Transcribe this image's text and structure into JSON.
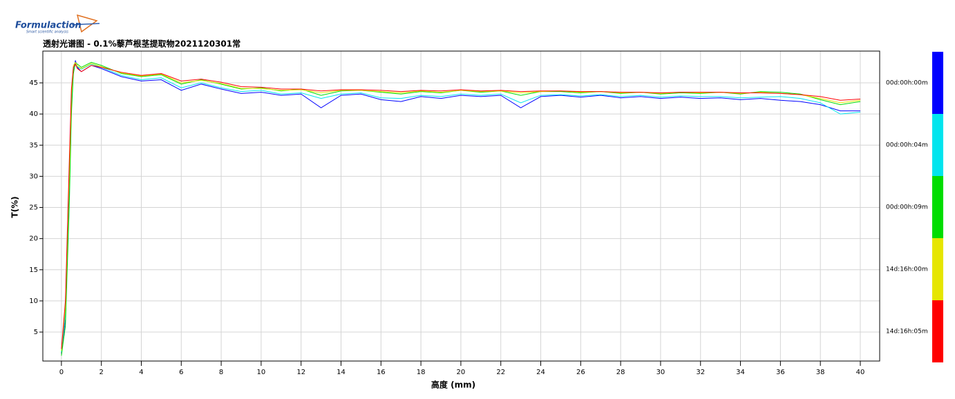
{
  "logo": {
    "name": "Formulaction",
    "tagline": "Smart scientific analysis"
  },
  "chart_data": {
    "type": "line",
    "title": "透射光谱图 - 0.1%藜芦根茎提取物2021120301常",
    "x_label": "高度 (mm)",
    "y_label": "T(%)",
    "x": [
      0,
      0.2,
      0.4,
      0.5,
      0.6,
      0.7,
      0.8,
      1,
      1.5,
      2,
      3,
      4,
      5,
      6,
      7,
      8,
      9,
      10,
      11,
      12,
      13,
      14,
      15,
      16,
      17,
      18,
      19,
      20,
      21,
      22,
      23,
      24,
      25,
      26,
      27,
      28,
      29,
      30,
      31,
      32,
      33,
      34,
      35,
      36,
      37,
      38,
      39,
      40
    ],
    "series": [
      {
        "name": "00d:00h:00m",
        "color": "#0000ff",
        "values": [
          1.5,
          7,
          28,
          41,
          47,
          48.6,
          47.5,
          46.8,
          47.8,
          47.3,
          46,
          45.3,
          45.5,
          43.8,
          44.8,
          44,
          43.3,
          43.5,
          43,
          43.2,
          41,
          43,
          43.2,
          42.3,
          42,
          42.8,
          42.5,
          43,
          42.8,
          43,
          41,
          42.8,
          43,
          42.7,
          43,
          42.6,
          42.8,
          42.5,
          42.7,
          42.5,
          42.6,
          42.3,
          42.5,
          42.2,
          42,
          41.5,
          40.5,
          40.5
        ]
      },
      {
        "name": "00d:00h:04m",
        "color": "#00e5ee",
        "values": [
          1.8,
          8,
          30,
          42,
          47.2,
          48,
          47.6,
          47.2,
          48,
          47.5,
          46.2,
          45.5,
          45.8,
          44.2,
          45,
          44.2,
          43.6,
          43.8,
          43.2,
          43.4,
          42.5,
          43.2,
          43.4,
          42.6,
          42.5,
          43,
          42.8,
          43.2,
          43,
          43.2,
          41.8,
          43,
          43.1,
          42.9,
          43.1,
          42.8,
          43,
          42.7,
          42.9,
          42.8,
          42.8,
          42.6,
          42.7,
          42.8,
          42.5,
          41.8,
          40,
          40.3
        ]
      },
      {
        "name": "00d:00h:09m",
        "color": "#00dd00",
        "values": [
          1.2,
          6,
          26,
          40,
          46.5,
          48.2,
          48,
          47.5,
          48.3,
          47.8,
          46.5,
          46,
          46.3,
          44.8,
          45.5,
          44.8,
          44,
          44.2,
          43.7,
          44,
          43,
          43.7,
          43.8,
          43.5,
          43.2,
          43.6,
          43.4,
          43.8,
          43.5,
          43.7,
          43,
          43.6,
          43.6,
          43.4,
          43.6,
          43.3,
          43.5,
          43.2,
          43.4,
          43.3,
          43.5,
          43.2,
          43.6,
          43.5,
          43.2,
          42.3,
          41.5,
          42
        ]
      },
      {
        "name": "14d:16h:00m",
        "color": "#e6e600",
        "values": [
          2,
          9,
          31,
          43,
          47.8,
          48.3,
          47.7,
          47.3,
          48.1,
          47.6,
          46.6,
          46.1,
          46.4,
          45,
          45.4,
          44.9,
          44.1,
          44.1,
          43.8,
          43.9,
          43.4,
          43.8,
          43.8,
          43.6,
          43.4,
          43.7,
          43.5,
          43.8,
          43.6,
          43.7,
          43.4,
          43.6,
          43.7,
          43.5,
          43.6,
          43.4,
          43.5,
          43.3,
          43.5,
          43.4,
          43.5,
          43.3,
          43.5,
          43.3,
          43.1,
          42.5,
          41.8,
          42.2
        ]
      },
      {
        "name": "14d:16h:05m",
        "color": "#ff0000",
        "values": [
          2.3,
          10,
          33,
          44,
          47.5,
          48,
          47.3,
          46.8,
          47.8,
          47.5,
          46.7,
          46.2,
          46.5,
          45.3,
          45.6,
          45.1,
          44.4,
          44.3,
          44,
          44,
          43.7,
          43.9,
          43.9,
          43.8,
          43.6,
          43.8,
          43.7,
          43.9,
          43.7,
          43.8,
          43.6,
          43.7,
          43.7,
          43.6,
          43.6,
          43.5,
          43.5,
          43.4,
          43.5,
          43.5,
          43.5,
          43.4,
          43.4,
          43.3,
          43.1,
          42.8,
          42.2,
          42.4
        ]
      }
    ],
    "xlim": [
      -0.93,
      40.97
    ],
    "ylim": [
      0.35,
      50.1
    ],
    "xticks": [
      0,
      2,
      4,
      6,
      8,
      10,
      12,
      14,
      16,
      18,
      20,
      22,
      24,
      26,
      28,
      30,
      32,
      34,
      36,
      38,
      40
    ],
    "yticks": [
      5,
      10,
      15,
      20,
      25,
      30,
      35,
      40,
      45
    ],
    "grid": true,
    "legend": "right"
  }
}
